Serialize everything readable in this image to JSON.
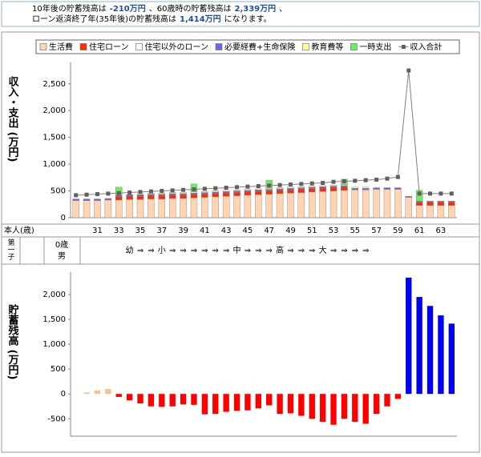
{
  "header": {
    "line1": [
      "10年後の貯蓄残高は",
      "-210万円",
      "、60歳時の貯蓄残高は",
      "2,339万円",
      "、"
    ],
    "line2": [
      "ローン返済終了年(35年後)の貯蓄残高は",
      "1,414万円",
      "になります。"
    ]
  },
  "table": {
    "age_label": "本人(歳)",
    "child_label": "第一子",
    "child_info": [
      "0歳",
      "男"
    ],
    "stages": [
      "幼",
      "⇒",
      "⇒",
      "小",
      "⇒",
      "⇒",
      "⇒",
      "⇒",
      "⇒",
      "⇒",
      "中",
      "⇒",
      "⇒",
      "⇒",
      "高",
      "⇒",
      "⇒",
      "⇒",
      "大",
      "⇒",
      "⇒",
      "⇒",
      "⇒"
    ]
  },
  "chart_data": [
    {
      "type": "bar",
      "stacked": true,
      "ylabel": "収入・支出 (万円)",
      "categories": [
        null,
        null,
        "31",
        null,
        "33",
        null,
        "35",
        null,
        "37",
        null,
        "39",
        null,
        "41",
        null,
        "43",
        null,
        "45",
        null,
        "47",
        null,
        "49",
        null,
        "51",
        null,
        "53",
        null,
        "55",
        null,
        "57",
        null,
        "59",
        null,
        "61",
        null,
        "63",
        null
      ],
      "ylim": [
        0,
        2900
      ],
      "yticks": [
        0,
        500,
        {
          "value": 1000,
          "label": "1,000"
        },
        {
          "value": 1500,
          "label": "1,500"
        },
        {
          "value": 2000,
          "label": "2,000"
        },
        {
          "value": 2500,
          "label": "2,500"
        }
      ],
      "series": [
        {
          "name": "生活費",
          "color": "#fcd5b4",
          "values": [
            320,
            320,
            320,
            330,
            330,
            340,
            340,
            350,
            350,
            360,
            360,
            370,
            380,
            390,
            400,
            410,
            420,
            430,
            440,
            450,
            460,
            470,
            480,
            490,
            500,
            510,
            520,
            520,
            530,
            530,
            530,
            380,
            230,
            230,
            230,
            230
          ]
        },
        {
          "name": "住宅ローン",
          "color": "#ff2a00",
          "values": [
            0,
            0,
            0,
            0,
            60,
            60,
            60,
            60,
            60,
            60,
            60,
            60,
            60,
            60,
            60,
            60,
            60,
            60,
            60,
            60,
            60,
            60,
            60,
            60,
            60,
            60,
            0,
            0,
            0,
            0,
            0,
            0,
            60,
            60,
            60,
            60
          ]
        },
        {
          "name": "住宅以外のローン",
          "color": "#ffffff",
          "values": [
            0,
            0,
            0,
            0,
            0,
            0,
            0,
            0,
            0,
            0,
            0,
            0,
            0,
            0,
            0,
            0,
            0,
            0,
            0,
            0,
            0,
            0,
            0,
            0,
            0,
            0,
            0,
            0,
            0,
            0,
            0,
            0,
            0,
            0,
            0,
            0
          ]
        },
        {
          "name": "必要経費+生命保険",
          "color": "#6666ee",
          "values": [
            30,
            30,
            30,
            30,
            30,
            30,
            30,
            30,
            30,
            30,
            30,
            30,
            30,
            30,
            30,
            30,
            30,
            30,
            30,
            30,
            30,
            30,
            30,
            30,
            30,
            30,
            30,
            30,
            30,
            30,
            30,
            20,
            20,
            20,
            20,
            20
          ]
        },
        {
          "name": "教育費等",
          "color": "#ffff99",
          "values": [
            0,
            0,
            0,
            0,
            0,
            0,
            20,
            20,
            20,
            20,
            20,
            20,
            20,
            20,
            20,
            20,
            20,
            20,
            20,
            20,
            20,
            20,
            20,
            20,
            20,
            20,
            20,
            20,
            0,
            0,
            0,
            0,
            0,
            0,
            0,
            0
          ]
        },
        {
          "name": "一時支出",
          "color": "#66ee66",
          "values": [
            0,
            0,
            0,
            0,
            150,
            0,
            0,
            0,
            0,
            0,
            0,
            150,
            0,
            0,
            0,
            0,
            0,
            0,
            150,
            0,
            0,
            0,
            0,
            0,
            0,
            100,
            0,
            0,
            0,
            0,
            0,
            0,
            200,
            0,
            0,
            0
          ]
        },
        {
          "name": "収入合計",
          "type": "line",
          "color": "#808080",
          "values": [
            420,
            430,
            440,
            450,
            460,
            470,
            480,
            490,
            500,
            510,
            520,
            530,
            540,
            550,
            560,
            570,
            580,
            590,
            600,
            610,
            620,
            630,
            640,
            650,
            670,
            680,
            690,
            700,
            710,
            730,
            760,
            2750,
            450,
            450,
            450,
            450
          ]
        }
      ]
    },
    {
      "type": "bar",
      "ylabel": "貯蓄残高 (万円)",
      "ylim": [
        -850,
        2450
      ],
      "yticks": [
        -500,
        0,
        500,
        {
          "value": 1000,
          "label": "1,000"
        },
        {
          "value": 1500,
          "label": "1,500"
        },
        {
          "value": 2000,
          "label": "2,000"
        }
      ],
      "series": [
        {
          "color": "#fac090",
          "values": [
            null,
            30,
            70,
            100,
            null,
            null,
            null,
            null,
            null,
            null,
            null,
            null,
            null,
            null,
            null,
            null,
            null,
            null,
            null,
            null,
            null,
            null,
            null,
            null,
            null,
            null,
            null,
            null,
            null,
            null,
            null,
            null,
            null,
            null,
            null,
            null
          ]
        },
        {
          "color": "#ff0000",
          "values": [
            null,
            null,
            null,
            null,
            -60,
            -130,
            -190,
            -250,
            -260,
            -250,
            -210,
            -220,
            -410,
            -400,
            -360,
            -340,
            -330,
            -290,
            -230,
            -400,
            -390,
            -440,
            -500,
            -560,
            -620,
            -500,
            -560,
            -600,
            -400,
            -250,
            -100,
            null,
            null,
            null,
            null,
            null
          ]
        },
        {
          "color": "#0000ee",
          "values": [
            null,
            null,
            null,
            null,
            null,
            null,
            null,
            null,
            null,
            null,
            null,
            null,
            null,
            null,
            null,
            null,
            null,
            null,
            null,
            null,
            null,
            null,
            null,
            null,
            null,
            null,
            null,
            null,
            null,
            null,
            null,
            2339,
            1950,
            1770,
            1580,
            1414
          ]
        }
      ]
    }
  ]
}
